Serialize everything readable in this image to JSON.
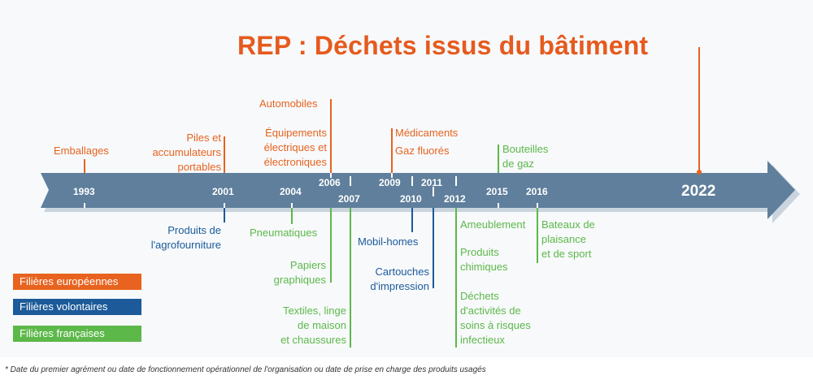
{
  "title": "REP : Déchets issus du bâtiment",
  "years": {
    "y1993": "1993",
    "y2001": "2001",
    "y2004": "2004",
    "y2006": "2006",
    "y2007": "2007",
    "y2009": "2009",
    "y2010": "2010",
    "y2011": "2011",
    "y2012": "2012",
    "y2015": "2015",
    "y2016": "2016",
    "y2022": "2022"
  },
  "events_above": {
    "emballages": "Emballages",
    "piles": [
      "Piles et",
      "accumulateurs",
      "portables"
    ],
    "automobiles": "Automobiles",
    "equipements": [
      "Équipements",
      "électriques et",
      "électroniques"
    ],
    "medicaments": "Médicaments",
    "gaz_fluores": "Gaz fluorés",
    "bouteilles": [
      "Bouteilles",
      "de gaz"
    ]
  },
  "events_below": {
    "agrofourniture": [
      "Produits de",
      "l'agrofourniture"
    ],
    "pneumatiques": "Pneumatiques",
    "papiers": [
      "Papiers",
      "graphiques"
    ],
    "textiles": [
      "Textiles, linge",
      "de maison",
      "et chaussures"
    ],
    "mobil_homes": "Mobil-homes",
    "cartouches": [
      "Cartouches",
      "d'impression"
    ],
    "ameublement": "Ameublement",
    "produits_chimiques": [
      "Produits",
      "chimiques"
    ],
    "dasri": [
      "Déchets",
      "d'activités de",
      "soins à risques",
      "infectieux"
    ],
    "bateaux": [
      "Bateaux de",
      "plaisance",
      "et de sport"
    ]
  },
  "legend": [
    {
      "label": "Filières européennes",
      "color": "#e8631f"
    },
    {
      "label": "Filières volontaires",
      "color": "#1c5a9a"
    },
    {
      "label": "Filières françaises",
      "color": "#5db84a"
    }
  ],
  "colors": {
    "european": "#e8631f",
    "voluntary": "#1c5a9a",
    "french": "#5db84a",
    "timeline": "#5f7f9c"
  },
  "footnote": "* Date du premier agrément ou date de fonctionnement opérationnel de l'organisation ou date de prise en charge des produits usagés"
}
